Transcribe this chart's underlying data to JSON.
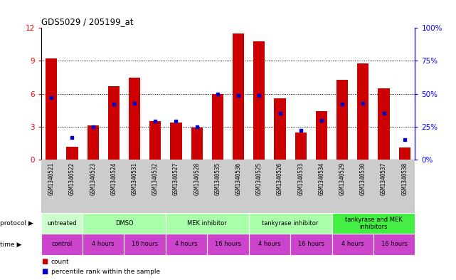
{
  "title": "GDS5029 / 205199_at",
  "samples": [
    "GSM1340521",
    "GSM1340522",
    "GSM1340523",
    "GSM1340524",
    "GSM1340531",
    "GSM1340532",
    "GSM1340527",
    "GSM1340528",
    "GSM1340535",
    "GSM1340536",
    "GSM1340525",
    "GSM1340526",
    "GSM1340533",
    "GSM1340534",
    "GSM1340529",
    "GSM1340530",
    "GSM1340537",
    "GSM1340538"
  ],
  "counts": [
    9.2,
    1.2,
    3.1,
    6.7,
    7.5,
    3.5,
    3.4,
    2.9,
    6.0,
    11.5,
    10.8,
    5.6,
    2.5,
    4.4,
    7.3,
    8.8,
    6.5,
    1.1
  ],
  "percentiles": [
    47,
    17,
    25,
    42,
    43,
    29,
    29,
    25,
    50,
    49,
    49,
    35,
    22,
    30,
    42,
    43,
    35,
    15
  ],
  "ylim_left": [
    0,
    12
  ],
  "ylim_right": [
    0,
    100
  ],
  "yticks_left": [
    0,
    3,
    6,
    9,
    12
  ],
  "yticks_right": [
    0,
    25,
    50,
    75,
    100
  ],
  "bar_color": "#cc0000",
  "dot_color": "#0000cc",
  "protocol_labels": [
    "untreated",
    "DMSO",
    "MEK inhibitor",
    "tankyrase inhibitor",
    "tankyrase and MEK\ninhibitors"
  ],
  "protocol_col_spans": [
    1,
    2,
    2,
    2,
    2
  ],
  "protocol_colors": [
    "#ccffcc",
    "#aaffaa",
    "#aaffaa",
    "#aaffaa",
    "#44ee44"
  ],
  "time_labels": [
    "control",
    "4 hours",
    "16 hours",
    "4 hours",
    "16 hours",
    "4 hours",
    "16 hours",
    "4 hours",
    "16 hours"
  ],
  "time_col_spans": [
    1,
    1,
    1,
    1,
    1,
    1,
    1,
    1,
    1
  ],
  "time_color": "#cc44cc",
  "bg_color": "#ffffff",
  "plot_bg": "#ffffff",
  "sample_bg": "#cccccc",
  "grid_yticks": [
    3,
    6,
    9
  ]
}
